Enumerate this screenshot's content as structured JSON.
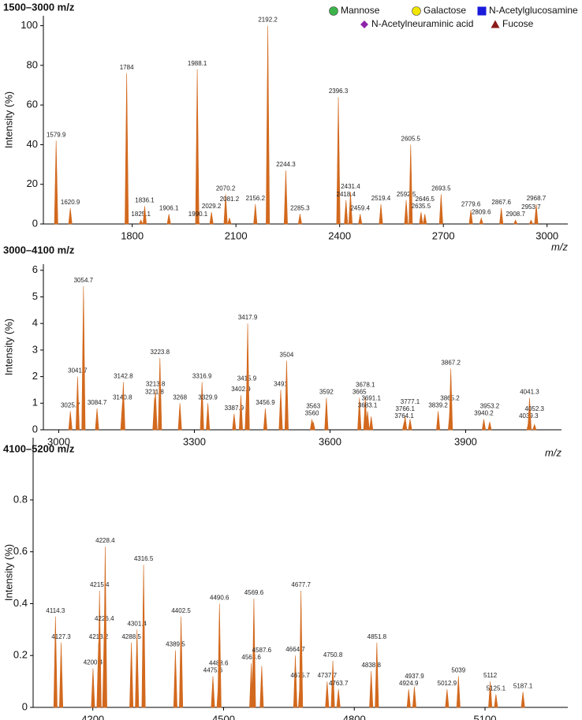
{
  "chart_data": [
    {
      "type": "spectrum",
      "title": "1500–3000 m/z",
      "ylabel": "Intensity (%)",
      "xlabel": "m/z",
      "color": "#d2691e",
      "xlim": [
        1543,
        3060
      ],
      "xticks": [
        1800,
        2100,
        2400,
        2700,
        3000
      ],
      "ylim": [
        0,
        105
      ],
      "yticks": [
        0,
        20,
        40,
        60,
        80,
        100
      ],
      "legend": [
        {
          "name": "Mannose",
          "color": "#3cb44b",
          "shape": "circle"
        },
        {
          "name": "Galactose",
          "color": "#f2e600",
          "shape": "circle"
        },
        {
          "name": "N-Acetylglucosamine",
          "color": "#1a1adb",
          "shape": "square"
        },
        {
          "name": "N-Acetylneuraminic acid",
          "color": "#8e24aa",
          "shape": "diamond"
        },
        {
          "name": "Fucose",
          "color": "#8b1a1a",
          "shape": "triangle"
        }
      ],
      "x": [
        1579.9,
        1620.9,
        1784.0,
        1825.1,
        1836.1,
        1906.1,
        1988.1,
        1990.1,
        2029.2,
        2070.2,
        2081.2,
        2156.2,
        2192.2,
        2244.3,
        2285.3,
        2396.3,
        2418.4,
        2431.4,
        2459.4,
        2519.4,
        2592.5,
        2605.5,
        2635.5,
        2646.5,
        2693.5,
        2779.6,
        2809.6,
        2867.6,
        2908.7,
        2953.7,
        2968.7
      ],
      "values": [
        42,
        8,
        76,
        2,
        9,
        5,
        78,
        2,
        6,
        15,
        3,
        10,
        100,
        27,
        5,
        64,
        12,
        16,
        5,
        10,
        12,
        40,
        6,
        5,
        15,
        7,
        3,
        8,
        2,
        2,
        10
      ]
    },
    {
      "type": "spectrum",
      "title": "3000–4100 m/z",
      "ylabel": "Intensity (%)",
      "xlabel": "m/z",
      "color": "#d2691e",
      "xlim": [
        2966,
        4112
      ],
      "xticks": [
        3000,
        3300,
        3600,
        3900
      ],
      "ylim": [
        0,
        6.23
      ],
      "yticks": [
        0,
        1,
        2,
        3,
        4,
        5,
        6
      ],
      "x": [
        3025.7,
        3041.7,
        3054.7,
        3084.7,
        3140.8,
        3142.8,
        3211.8,
        3213.8,
        3223.8,
        3268.0,
        3316.9,
        3329.9,
        3387.9,
        3402.9,
        3415.9,
        3417.9,
        3456.9,
        3491.0,
        3504.0,
        3560.0,
        3563.0,
        3592.0,
        3665.0,
        3678.1,
        3683.1,
        3691.1,
        3764.1,
        3766.1,
        3777.1,
        3839.2,
        3865.2,
        3867.2,
        3940.2,
        3953.2,
        4039.3,
        4041.3,
        4052.3
      ],
      "values": [
        0.7,
        2.0,
        5.4,
        0.8,
        1.0,
        1.8,
        1.2,
        1.5,
        2.7,
        1.0,
        1.8,
        1.0,
        0.6,
        1.3,
        1.7,
        4.0,
        0.8,
        1.5,
        2.6,
        0.4,
        0.3,
        1.2,
        1.2,
        1.2,
        0.7,
        0.5,
        0.3,
        0.5,
        0.4,
        0.7,
        0.7,
        2.3,
        0.4,
        0.3,
        0.3,
        1.2,
        0.2
      ]
    },
    {
      "type": "spectrum",
      "title": "4100–5200 m/z",
      "ylabel": "Intensity (%)",
      "color": "#d2691e",
      "xlim": [
        4063,
        5290
      ],
      "xticks": [
        4200,
        4500,
        4800,
        5100
      ],
      "ylim": [
        0,
        1.04
      ],
      "yticks": [
        0,
        0.2,
        0.4,
        0.6,
        0.8
      ],
      "x": [
        4114.3,
        4127.3,
        4200.4,
        4213.2,
        4215.4,
        4226.4,
        4228.4,
        4288.5,
        4301.4,
        4316.5,
        4389.5,
        4402.5,
        4475.6,
        4488.6,
        4490.6,
        4563.6,
        4569.6,
        4587.6,
        4664.7,
        4675.7,
        4677.7,
        4737.7,
        4750.8,
        4763.7,
        4838.8,
        4851.8,
        4924.9,
        4937.9,
        5012.9,
        5039.0,
        5112.0,
        5125.1,
        5187.1
      ],
      "values": [
        0.35,
        0.25,
        0.15,
        0.25,
        0.45,
        0.32,
        0.62,
        0.25,
        0.3,
        0.55,
        0.22,
        0.35,
        0.12,
        0.1,
        0.4,
        0.17,
        0.42,
        0.16,
        0.2,
        0.1,
        0.45,
        0.1,
        0.18,
        0.07,
        0.14,
        0.25,
        0.07,
        0.08,
        0.07,
        0.12,
        0.1,
        0.05,
        0.06
      ]
    }
  ]
}
